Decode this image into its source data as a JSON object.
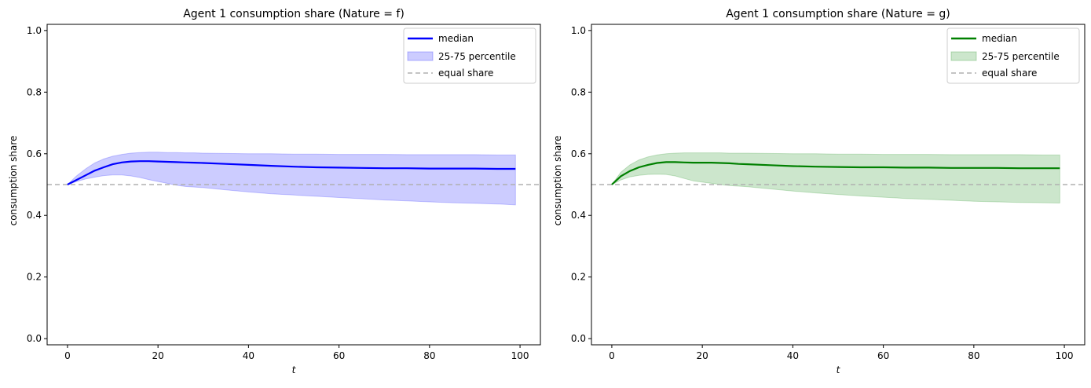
{
  "chart_data": [
    {
      "type": "line",
      "title": "Agent 1 consumption share (Nature = f)",
      "xlabel": "t",
      "ylabel": "consumption share",
      "xlim": [
        -4.5,
        104.5
      ],
      "ylim": [
        -0.02,
        1.02
      ],
      "xticks": [
        0,
        20,
        40,
        60,
        80,
        100
      ],
      "yticks": [
        0.0,
        0.2,
        0.4,
        0.6,
        0.8,
        1.0
      ],
      "grid": false,
      "legend_position": "top-right",
      "color": "#0000ff",
      "band_color": "#ccccff",
      "legend": [
        "median",
        "25-75 percentile",
        "equal share"
      ],
      "reference_line": {
        "name": "equal share",
        "y": 0.5,
        "style": "dashed",
        "color": "#b0b0b0"
      },
      "x": [
        0,
        2,
        4,
        6,
        8,
        10,
        12,
        14,
        16,
        18,
        20,
        22,
        24,
        26,
        28,
        30,
        35,
        40,
        45,
        50,
        55,
        60,
        65,
        70,
        75,
        80,
        85,
        90,
        95,
        99
      ],
      "median": [
        0.5,
        0.515,
        0.53,
        0.545,
        0.556,
        0.566,
        0.572,
        0.575,
        0.576,
        0.576,
        0.575,
        0.574,
        0.573,
        0.572,
        0.571,
        0.57,
        0.567,
        0.564,
        0.561,
        0.558,
        0.556,
        0.555,
        0.554,
        0.553,
        0.553,
        0.552,
        0.552,
        0.552,
        0.551,
        0.551
      ],
      "p75": [
        0.5,
        0.528,
        0.551,
        0.57,
        0.583,
        0.592,
        0.598,
        0.602,
        0.604,
        0.605,
        0.605,
        0.604,
        0.604,
        0.603,
        0.603,
        0.602,
        0.601,
        0.6,
        0.6,
        0.599,
        0.599,
        0.598,
        0.598,
        0.598,
        0.597,
        0.597,
        0.597,
        0.597,
        0.596,
        0.596
      ],
      "p25": [
        0.5,
        0.51,
        0.518,
        0.524,
        0.529,
        0.531,
        0.531,
        0.528,
        0.523,
        0.516,
        0.51,
        0.504,
        0.498,
        0.494,
        0.492,
        0.49,
        0.483,
        0.476,
        0.47,
        0.466,
        0.462,
        0.458,
        0.454,
        0.45,
        0.447,
        0.444,
        0.441,
        0.439,
        0.437,
        0.434
      ]
    },
    {
      "type": "line",
      "title": "Agent 1 consumption share (Nature = g)",
      "xlabel": "t",
      "ylabel": "consumption share",
      "xlim": [
        -4.5,
        104.5
      ],
      "ylim": [
        -0.02,
        1.02
      ],
      "xticks": [
        0,
        20,
        40,
        60,
        80,
        100
      ],
      "yticks": [
        0.0,
        0.2,
        0.4,
        0.6,
        0.8,
        1.0
      ],
      "grid": false,
      "legend_position": "top-right",
      "color": "#008000",
      "band_color": "#cce6cc",
      "legend": [
        "median",
        "25-75 percentile",
        "equal share"
      ],
      "reference_line": {
        "name": "equal share",
        "y": 0.5,
        "style": "dashed",
        "color": "#b0b0b0"
      },
      "x": [
        0,
        2,
        4,
        6,
        8,
        10,
        12,
        14,
        16,
        18,
        20,
        22,
        24,
        26,
        28,
        30,
        35,
        40,
        45,
        50,
        55,
        60,
        65,
        70,
        75,
        80,
        85,
        90,
        95,
        99
      ],
      "median": [
        0.5,
        0.527,
        0.544,
        0.556,
        0.564,
        0.57,
        0.573,
        0.573,
        0.572,
        0.571,
        0.571,
        0.571,
        0.57,
        0.569,
        0.567,
        0.566,
        0.563,
        0.56,
        0.558,
        0.557,
        0.556,
        0.556,
        0.555,
        0.555,
        0.554,
        0.554,
        0.554,
        0.553,
        0.553,
        0.553
      ],
      "p75": [
        0.5,
        0.54,
        0.564,
        0.58,
        0.59,
        0.596,
        0.6,
        0.602,
        0.603,
        0.603,
        0.603,
        0.603,
        0.603,
        0.602,
        0.602,
        0.602,
        0.601,
        0.6,
        0.6,
        0.599,
        0.599,
        0.598,
        0.598,
        0.598,
        0.597,
        0.597,
        0.597,
        0.597,
        0.596,
        0.596
      ],
      "p25": [
        0.5,
        0.515,
        0.525,
        0.53,
        0.533,
        0.534,
        0.533,
        0.528,
        0.52,
        0.512,
        0.508,
        0.504,
        0.5,
        0.497,
        0.495,
        0.493,
        0.486,
        0.479,
        0.473,
        0.468,
        0.463,
        0.459,
        0.455,
        0.452,
        0.449,
        0.446,
        0.444,
        0.442,
        0.441,
        0.44
      ]
    }
  ]
}
